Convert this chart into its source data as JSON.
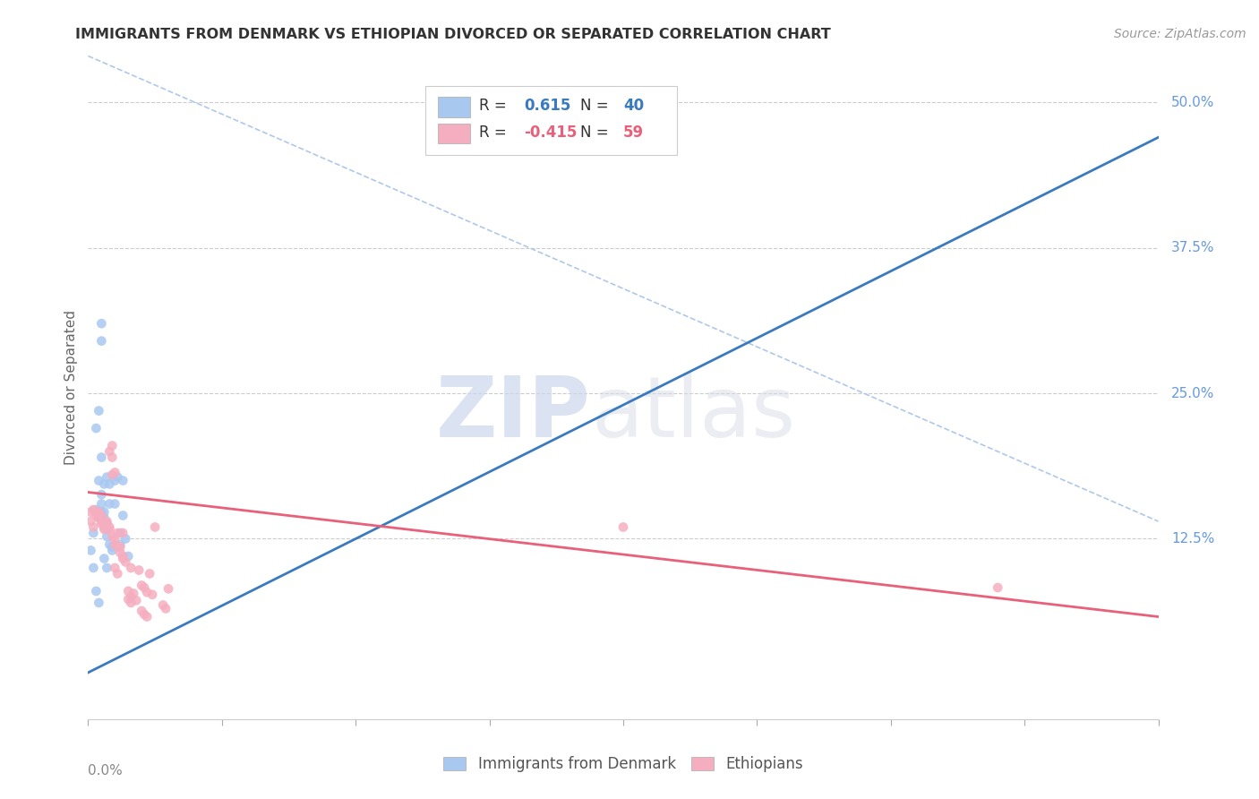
{
  "title": "IMMIGRANTS FROM DENMARK VS ETHIOPIAN DIVORCED OR SEPARATED CORRELATION CHART",
  "source": "Source: ZipAtlas.com",
  "ylabel": "Divorced or Separated",
  "right_yticks": [
    "50.0%",
    "37.5%",
    "25.0%",
    "12.5%"
  ],
  "right_ytick_vals": [
    0.5,
    0.375,
    0.25,
    0.125
  ],
  "xlim": [
    0.0,
    0.4
  ],
  "ylim": [
    -0.03,
    0.54
  ],
  "blue_color": "#a8c8f0",
  "pink_color": "#f5aec0",
  "blue_line_color": "#3a7abf",
  "pink_line_color": "#e8607a",
  "blue_trendline": [
    [
      0.0,
      0.01
    ],
    [
      0.4,
      0.47
    ]
  ],
  "pink_trendline": [
    [
      0.0,
      0.165
    ],
    [
      0.4,
      0.058
    ]
  ],
  "diagonal_line": [
    [
      0.0,
      0.54
    ],
    [
      0.4,
      0.14
    ]
  ],
  "watermark_zip": "ZIP",
  "watermark_atlas": "atlas",
  "background_color": "#ffffff",
  "legend_blue_r": "0.615",
  "legend_blue_n": "40",
  "legend_pink_r": "-0.415",
  "legend_pink_n": "59",
  "blue_scatter": [
    [
      0.001,
      0.115
    ],
    [
      0.002,
      0.13
    ],
    [
      0.002,
      0.1
    ],
    [
      0.003,
      0.15
    ],
    [
      0.003,
      0.22
    ],
    [
      0.004,
      0.235
    ],
    [
      0.004,
      0.175
    ],
    [
      0.004,
      0.145
    ],
    [
      0.005,
      0.195
    ],
    [
      0.005,
      0.163
    ],
    [
      0.005,
      0.155
    ],
    [
      0.005,
      0.148
    ],
    [
      0.006,
      0.143
    ],
    [
      0.006,
      0.148
    ],
    [
      0.006,
      0.172
    ],
    [
      0.006,
      0.135
    ],
    [
      0.007,
      0.138
    ],
    [
      0.007,
      0.133
    ],
    [
      0.007,
      0.178
    ],
    [
      0.007,
      0.127
    ],
    [
      0.008,
      0.155
    ],
    [
      0.008,
      0.172
    ],
    [
      0.008,
      0.12
    ],
    [
      0.009,
      0.118
    ],
    [
      0.009,
      0.115
    ],
    [
      0.01,
      0.155
    ],
    [
      0.01,
      0.175
    ],
    [
      0.011,
      0.178
    ],
    [
      0.012,
      0.12
    ],
    [
      0.012,
      0.13
    ],
    [
      0.013,
      0.175
    ],
    [
      0.013,
      0.145
    ],
    [
      0.014,
      0.125
    ],
    [
      0.015,
      0.11
    ],
    [
      0.005,
      0.295
    ],
    [
      0.005,
      0.31
    ],
    [
      0.003,
      0.08
    ],
    [
      0.004,
      0.07
    ],
    [
      0.006,
      0.108
    ],
    [
      0.007,
      0.1
    ]
  ],
  "pink_scatter": [
    [
      0.001,
      0.148
    ],
    [
      0.001,
      0.14
    ],
    [
      0.002,
      0.135
    ],
    [
      0.002,
      0.15
    ],
    [
      0.003,
      0.145
    ],
    [
      0.003,
      0.148
    ],
    [
      0.004,
      0.143
    ],
    [
      0.004,
      0.148
    ],
    [
      0.004,
      0.143
    ],
    [
      0.005,
      0.145
    ],
    [
      0.005,
      0.138
    ],
    [
      0.005,
      0.14
    ],
    [
      0.006,
      0.135
    ],
    [
      0.006,
      0.138
    ],
    [
      0.006,
      0.133
    ],
    [
      0.007,
      0.138
    ],
    [
      0.007,
      0.135
    ],
    [
      0.007,
      0.14
    ],
    [
      0.008,
      0.133
    ],
    [
      0.008,
      0.135
    ],
    [
      0.008,
      0.2
    ],
    [
      0.009,
      0.205
    ],
    [
      0.009,
      0.195
    ],
    [
      0.009,
      0.127
    ],
    [
      0.01,
      0.12
    ],
    [
      0.01,
      0.125
    ],
    [
      0.01,
      0.1
    ],
    [
      0.011,
      0.118
    ],
    [
      0.011,
      0.095
    ],
    [
      0.011,
      0.13
    ],
    [
      0.012,
      0.118
    ],
    [
      0.012,
      0.113
    ],
    [
      0.013,
      0.11
    ],
    [
      0.013,
      0.108
    ],
    [
      0.013,
      0.13
    ],
    [
      0.014,
      0.105
    ],
    [
      0.015,
      0.08
    ],
    [
      0.016,
      0.1
    ],
    [
      0.016,
      0.075
    ],
    [
      0.017,
      0.078
    ],
    [
      0.018,
      0.072
    ],
    [
      0.019,
      0.098
    ],
    [
      0.02,
      0.085
    ],
    [
      0.021,
      0.083
    ],
    [
      0.022,
      0.079
    ],
    [
      0.023,
      0.095
    ],
    [
      0.024,
      0.077
    ],
    [
      0.009,
      0.18
    ],
    [
      0.01,
      0.182
    ],
    [
      0.025,
      0.135
    ],
    [
      0.015,
      0.073
    ],
    [
      0.016,
      0.07
    ],
    [
      0.028,
      0.068
    ],
    [
      0.029,
      0.065
    ],
    [
      0.03,
      0.082
    ],
    [
      0.2,
      0.135
    ],
    [
      0.34,
      0.083
    ],
    [
      0.02,
      0.063
    ],
    [
      0.021,
      0.06
    ],
    [
      0.022,
      0.058
    ]
  ]
}
